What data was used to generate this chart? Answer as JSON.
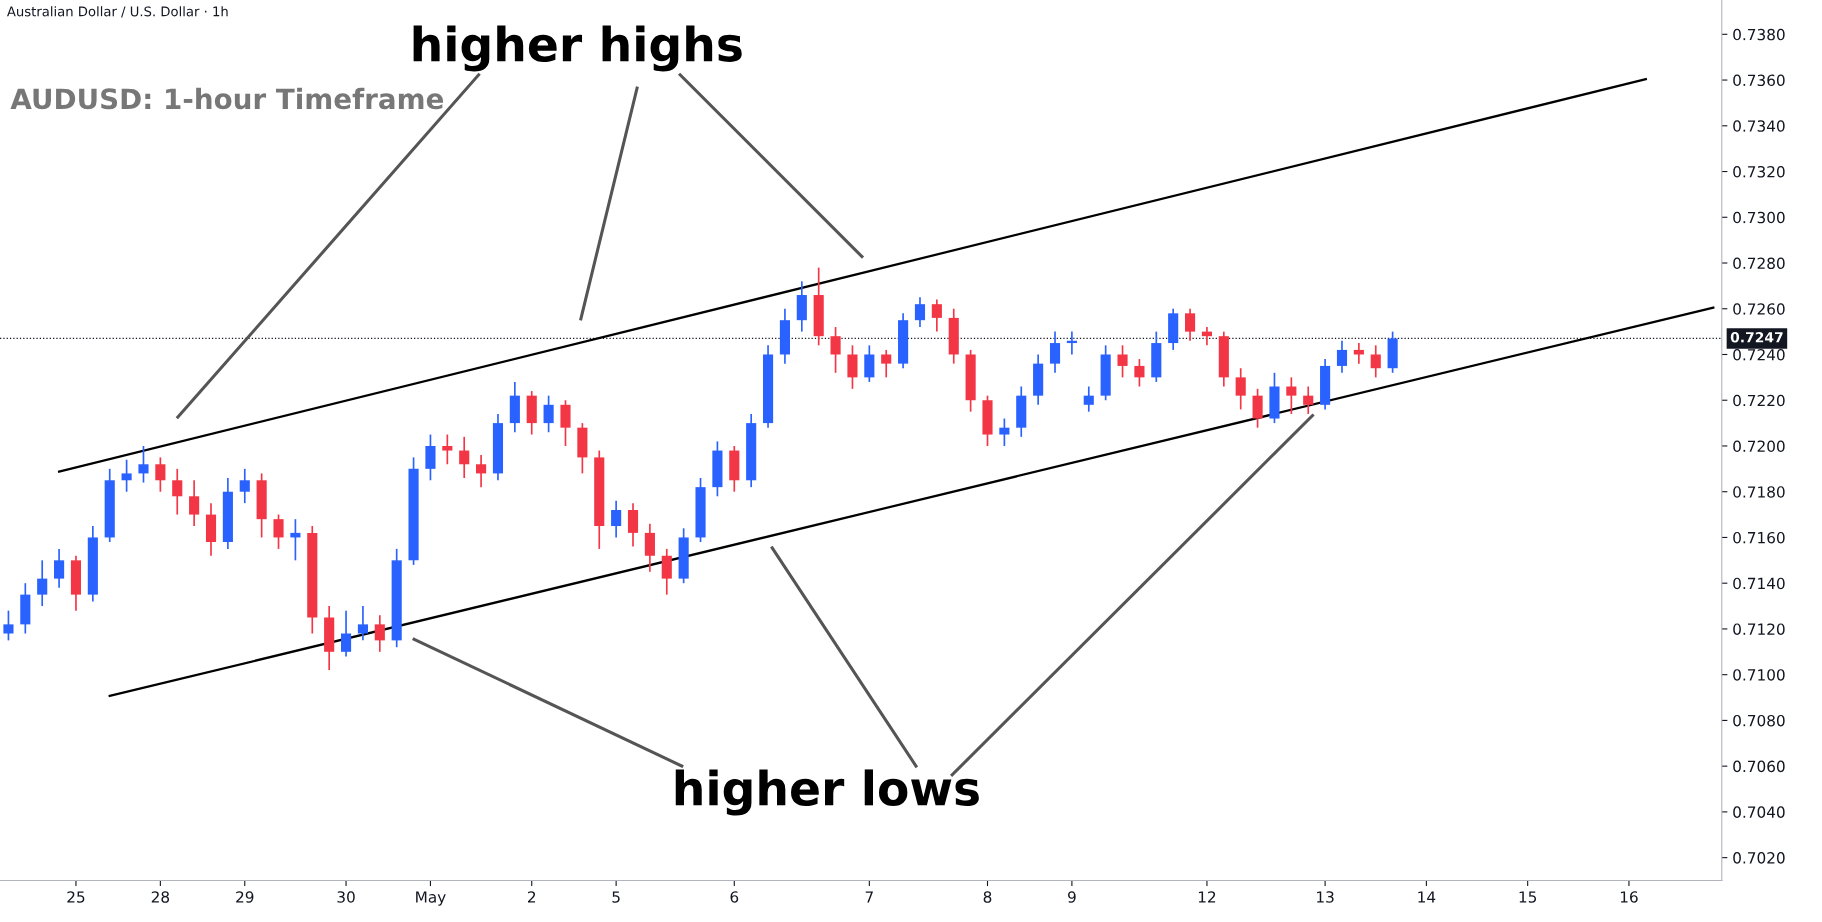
{
  "chart_data": {
    "type": "candlestick",
    "title": "Australian Dollar / U.S. Dollar · 1h",
    "subtitle": "AUDUSD: 1-hour Timeframe",
    "annotations": [
      "higher highs",
      "higher lows"
    ],
    "categories": [
      null,
      null,
      null,
      null,
      "25",
      null,
      null,
      null,
      null,
      "28",
      null,
      null,
      null,
      null,
      "29",
      null,
      null,
      null,
      null,
      null,
      "30",
      null,
      null,
      null,
      null,
      "May",
      null,
      null,
      null,
      null,
      null,
      "2",
      null,
      null,
      null,
      null,
      "5",
      null,
      null,
      null,
      null,
      null,
      null,
      "6",
      null,
      null,
      null,
      null,
      null,
      null,
      null,
      "7",
      null,
      null,
      null,
      null,
      null,
      null,
      "8",
      null,
      null,
      null,
      null,
      "9",
      null,
      null,
      null,
      null,
      null,
      null,
      null,
      "12",
      null,
      null,
      null,
      null,
      null,
      null,
      "13",
      null,
      null,
      null,
      null,
      null,
      "14",
      null,
      null,
      null,
      null,
      null,
      "15",
      null,
      null,
      null,
      null,
      null,
      "16",
      null,
      null,
      null,
      null,
      null
    ],
    "ohlc": [
      [
        0.7118,
        0.7128,
        0.7115,
        0.7122
      ],
      [
        0.7122,
        0.714,
        0.7118,
        0.7135
      ],
      [
        0.7135,
        0.715,
        0.713,
        0.7142
      ],
      [
        0.7142,
        0.7155,
        0.7138,
        0.715
      ],
      [
        0.715,
        0.7152,
        0.7128,
        0.7135
      ],
      [
        0.7135,
        0.7165,
        0.7132,
        0.716
      ],
      [
        0.716,
        0.719,
        0.7158,
        0.7185
      ],
      [
        0.7185,
        0.7194,
        0.718,
        0.7188
      ],
      [
        0.7188,
        0.72,
        0.7184,
        0.7192
      ],
      [
        0.7192,
        0.7195,
        0.718,
        0.7185
      ],
      [
        0.7185,
        0.719,
        0.717,
        0.7178
      ],
      [
        0.7178,
        0.7185,
        0.7165,
        0.717
      ],
      [
        0.717,
        0.7175,
        0.7152,
        0.7158
      ],
      [
        0.7158,
        0.7186,
        0.7155,
        0.718
      ],
      [
        0.718,
        0.719,
        0.7175,
        0.7185
      ],
      [
        0.7185,
        0.7188,
        0.716,
        0.7168
      ],
      [
        0.7168,
        0.717,
        0.7155,
        0.716
      ],
      [
        0.716,
        0.7168,
        0.715,
        0.7162
      ],
      [
        0.7162,
        0.7165,
        0.7118,
        0.7125
      ],
      [
        0.7125,
        0.713,
        0.7102,
        0.711
      ],
      [
        0.711,
        0.7128,
        0.7108,
        0.7118
      ],
      [
        0.7118,
        0.713,
        0.7115,
        0.7122
      ],
      [
        0.7122,
        0.7126,
        0.711,
        0.7115
      ],
      [
        0.7115,
        0.7155,
        0.7112,
        0.715
      ],
      [
        0.715,
        0.7195,
        0.7148,
        0.719
      ],
      [
        0.719,
        0.7205,
        0.7185,
        0.72
      ],
      [
        0.72,
        0.7205,
        0.7192,
        0.7198
      ],
      [
        0.7198,
        0.7204,
        0.7186,
        0.7192
      ],
      [
        0.7192,
        0.7196,
        0.7182,
        0.7188
      ],
      [
        0.7188,
        0.7214,
        0.7185,
        0.721
      ],
      [
        0.721,
        0.7228,
        0.7206,
        0.7222
      ],
      [
        0.7222,
        0.7224,
        0.7205,
        0.721
      ],
      [
        0.721,
        0.7222,
        0.7206,
        0.7218
      ],
      [
        0.7218,
        0.722,
        0.72,
        0.7208
      ],
      [
        0.7208,
        0.721,
        0.7188,
        0.7195
      ],
      [
        0.7195,
        0.7198,
        0.7155,
        0.7165
      ],
      [
        0.7165,
        0.7176,
        0.716,
        0.7172
      ],
      [
        0.7172,
        0.7175,
        0.7156,
        0.7162
      ],
      [
        0.7162,
        0.7166,
        0.7145,
        0.7152
      ],
      [
        0.7152,
        0.7155,
        0.7135,
        0.7142
      ],
      [
        0.7142,
        0.7164,
        0.714,
        0.716
      ],
      [
        0.716,
        0.7186,
        0.7158,
        0.7182
      ],
      [
        0.7182,
        0.7202,
        0.7178,
        0.7198
      ],
      [
        0.7198,
        0.72,
        0.718,
        0.7185
      ],
      [
        0.7185,
        0.7214,
        0.7182,
        0.721
      ],
      [
        0.721,
        0.7244,
        0.7208,
        0.724
      ],
      [
        0.724,
        0.726,
        0.7236,
        0.7255
      ],
      [
        0.7255,
        0.7272,
        0.725,
        0.7266
      ],
      [
        0.7266,
        0.7278,
        0.7244,
        0.7248
      ],
      [
        0.7248,
        0.7252,
        0.7232,
        0.724
      ],
      [
        0.724,
        0.7244,
        0.7225,
        0.723
      ],
      [
        0.723,
        0.7244,
        0.7228,
        0.724
      ],
      [
        0.724,
        0.7242,
        0.723,
        0.7236
      ],
      [
        0.7236,
        0.7258,
        0.7234,
        0.7255
      ],
      [
        0.7255,
        0.7265,
        0.7252,
        0.7262
      ],
      [
        0.7262,
        0.7264,
        0.725,
        0.7256
      ],
      [
        0.7256,
        0.726,
        0.7236,
        0.724
      ],
      [
        0.724,
        0.7242,
        0.7215,
        0.722
      ],
      [
        0.722,
        0.7222,
        0.72,
        0.7205
      ],
      [
        0.7205,
        0.7212,
        0.72,
        0.7208
      ],
      [
        0.7208,
        0.7226,
        0.7204,
        0.7222
      ],
      [
        0.7222,
        0.724,
        0.7218,
        0.7236
      ],
      [
        0.7236,
        0.725,
        0.7232,
        0.7245
      ],
      [
        0.7245,
        0.725,
        0.724,
        0.7246
      ],
      [
        0.7218,
        0.7226,
        0.7215,
        0.7222
      ],
      [
        0.7222,
        0.7244,
        0.722,
        0.724
      ],
      [
        0.724,
        0.7244,
        0.723,
        0.7235
      ],
      [
        0.7235,
        0.7238,
        0.7226,
        0.723
      ],
      [
        0.723,
        0.725,
        0.7228,
        0.7245
      ],
      [
        0.7245,
        0.726,
        0.7242,
        0.7258
      ],
      [
        0.7258,
        0.726,
        0.7246,
        0.725
      ],
      [
        0.725,
        0.7252,
        0.7244,
        0.7248
      ],
      [
        0.7248,
        0.725,
        0.7226,
        0.723
      ],
      [
        0.723,
        0.7234,
        0.7216,
        0.7222
      ],
      [
        0.7222,
        0.7225,
        0.7208,
        0.7212
      ],
      [
        0.7212,
        0.7232,
        0.721,
        0.7226
      ],
      [
        0.7226,
        0.723,
        0.7214,
        0.7222
      ],
      [
        0.7222,
        0.7226,
        0.7214,
        0.7218
      ],
      [
        0.7218,
        0.7238,
        0.7216,
        0.7235
      ],
      [
        0.7235,
        0.7246,
        0.7232,
        0.7242
      ],
      [
        0.7242,
        0.7245,
        0.7236,
        0.724
      ],
      [
        0.724,
        0.7244,
        0.723,
        0.7234
      ],
      [
        0.7234,
        0.725,
        0.7232,
        0.7247
      ],
      null,
      null,
      null,
      null,
      null,
      null,
      null,
      null,
      null,
      null,
      null,
      null,
      null,
      null,
      null,
      null,
      null,
      null,
      null
    ],
    "series": [
      {
        "type": "line",
        "color": "#000000",
        "values": [
          null,
          null,
          null,
          0.71888,
          null,
          null,
          null,
          null,
          null,
          null,
          null,
          null,
          null,
          null,
          null,
          null,
          null,
          null,
          null,
          null,
          null,
          null,
          null,
          null,
          null,
          null,
          null,
          null,
          null,
          null,
          null,
          null,
          null,
          null,
          null,
          null,
          null,
          null,
          null,
          null,
          null,
          null,
          null,
          null,
          null,
          null,
          null,
          null,
          null,
          null,
          null,
          null,
          null,
          null,
          null,
          null,
          null,
          null,
          null,
          null,
          null,
          null,
          null,
          null,
          null,
          null,
          null,
          null,
          null,
          null,
          null,
          null,
          null,
          null,
          null,
          null,
          null,
          null,
          null,
          null,
          null,
          null,
          null,
          null,
          null,
          null,
          null,
          null,
          null,
          null,
          null,
          null,
          null,
          null,
          null,
          null,
          null,
          0.73604,
          null,
          null,
          null,
          null
        ]
      },
      {
        "type": "line",
        "color": "#000000",
        "values": [
          null,
          null,
          null,
          null,
          null,
          null,
          0.70907,
          null,
          null,
          null,
          null,
          null,
          null,
          null,
          null,
          null,
          null,
          null,
          null,
          null,
          null,
          null,
          null,
          null,
          null,
          null,
          null,
          null,
          null,
          null,
          null,
          null,
          null,
          null,
          null,
          null,
          null,
          null,
          null,
          null,
          null,
          null,
          null,
          null,
          null,
          null,
          null,
          null,
          null,
          null,
          null,
          null,
          null,
          null,
          null,
          null,
          null,
          null,
          null,
          null,
          null,
          null,
          null,
          null,
          null,
          null,
          null,
          null,
          null,
          null,
          null,
          null,
          null,
          null,
          null,
          null,
          null,
          null,
          null,
          null,
          null,
          null,
          null,
          null,
          null,
          null,
          null,
          null,
          null,
          null,
          null,
          null,
          null,
          null,
          null,
          null,
          null,
          null,
          null,
          null,
          null,
          0.72605
        ]
      }
    ],
    "ref_lines": [
      {
        "axis": "y",
        "value": 0.7247,
        "label": "0.7247",
        "color": "#131722",
        "line_style": "dotted"
      }
    ],
    "ylim": [
      0.701,
      0.7395
    ],
    "yticks": [
      {
        "value": 0.702,
        "label": "0.7020"
      },
      {
        "value": 0.704,
        "label": "0.7040"
      },
      {
        "value": 0.706,
        "label": "0.7060"
      },
      {
        "value": 0.708,
        "label": "0.7080"
      },
      {
        "value": 0.71,
        "label": "0.7100"
      },
      {
        "value": 0.712,
        "label": "0.7120"
      },
      {
        "value": 0.714,
        "label": "0.7140"
      },
      {
        "value": 0.716,
        "label": "0.7160"
      },
      {
        "value": 0.718,
        "label": "0.7180"
      },
      {
        "value": 0.72,
        "label": "0.7200"
      },
      {
        "value": 0.722,
        "label": "0.7220"
      },
      {
        "value": 0.724,
        "label": "0.7240"
      },
      {
        "value": 0.726,
        "label": "0.7260"
      },
      {
        "value": 0.728,
        "label": "0.7280"
      },
      {
        "value": 0.73,
        "label": "0.7300"
      },
      {
        "value": 0.732,
        "label": "0.7320"
      },
      {
        "value": 0.734,
        "label": "0.7340"
      },
      {
        "value": 0.736,
        "label": "0.7360"
      },
      {
        "value": 0.738,
        "label": "0.7380"
      }
    ],
    "grid": false,
    "legend": false
  }
}
